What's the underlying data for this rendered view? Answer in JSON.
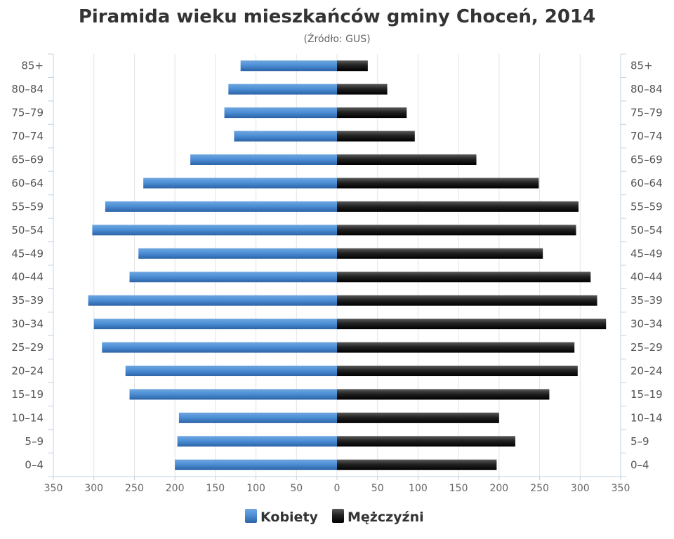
{
  "chart_data": {
    "type": "bar",
    "orientation": "horizontal",
    "title": "Piramida wieku mieszkańców gminy Choceń, 2014",
    "subtitle": "(Źródło: GUS)",
    "categories": [
      "85+",
      "80–84",
      "75–79",
      "70–74",
      "65–69",
      "60–64",
      "55–59",
      "50–54",
      "45–49",
      "40–44",
      "35–39",
      "30–34",
      "25–29",
      "20–24",
      "15–19",
      "10–14",
      "5–9",
      "0–4"
    ],
    "xlim": [
      -350,
      350
    ],
    "xticks": [
      {
        "value": -350,
        "label": "350"
      },
      {
        "value": -300,
        "label": "300"
      },
      {
        "value": -250,
        "label": "250"
      },
      {
        "value": -200,
        "label": "200"
      },
      {
        "value": -150,
        "label": "150"
      },
      {
        "value": -100,
        "label": "100"
      },
      {
        "value": -50,
        "label": "50"
      },
      {
        "value": 0,
        "label": "0"
      },
      {
        "value": 50,
        "label": "50"
      },
      {
        "value": 100,
        "label": "100"
      },
      {
        "value": 150,
        "label": "150"
      },
      {
        "value": 200,
        "label": "200"
      },
      {
        "value": 250,
        "label": "250"
      },
      {
        "value": 300,
        "label": "300"
      },
      {
        "value": 350,
        "label": "350"
      }
    ],
    "grid": true,
    "legend_position": "bottom",
    "series": [
      {
        "name": "Kobiety",
        "color": "#3d7ec4",
        "values": [
          -119,
          -134,
          -139,
          -127,
          -181,
          -239,
          -286,
          -302,
          -245,
          -256,
          -307,
          -300,
          -290,
          -261,
          -256,
          -195,
          -197,
          -200
        ]
      },
      {
        "name": "Mężczyźni",
        "color": "#1a1a1a",
        "values": [
          38,
          62,
          86,
          96,
          172,
          249,
          298,
          295,
          254,
          313,
          321,
          332,
          293,
          297,
          262,
          200,
          220,
          197
        ]
      }
    ]
  }
}
